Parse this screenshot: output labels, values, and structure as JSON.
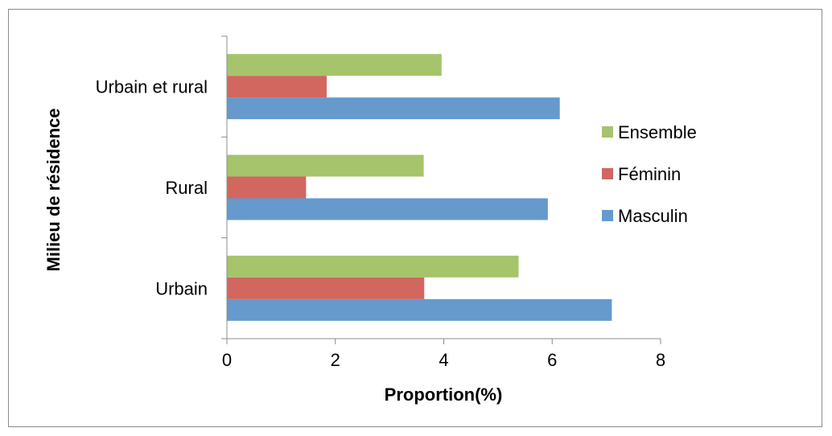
{
  "chart_data": {
    "type": "bar",
    "orientation": "horizontal",
    "categories": [
      "Urbain",
      "Rural",
      "Urbain et rural"
    ],
    "series": [
      {
        "name": "Masculin",
        "color": "#6699cc",
        "values": [
          7.1,
          5.92,
          6.14
        ]
      },
      {
        "name": "Féminin",
        "color": "#d1675f",
        "values": [
          3.64,
          1.46,
          1.84
        ]
      },
      {
        "name": "Ensemble",
        "color": "#a6c46b",
        "values": [
          5.38,
          3.63,
          3.96
        ]
      }
    ],
    "title": "",
    "xlabel": "Proportion(%)",
    "ylabel": "Milieu de résidence",
    "xlim": [
      0,
      8
    ],
    "xticks": [
      "0",
      "2",
      "4",
      "6",
      "8"
    ],
    "legend": {
      "placement": "right",
      "order": [
        "Ensemble",
        "Féminin",
        "Masculin"
      ]
    },
    "grid": false
  }
}
